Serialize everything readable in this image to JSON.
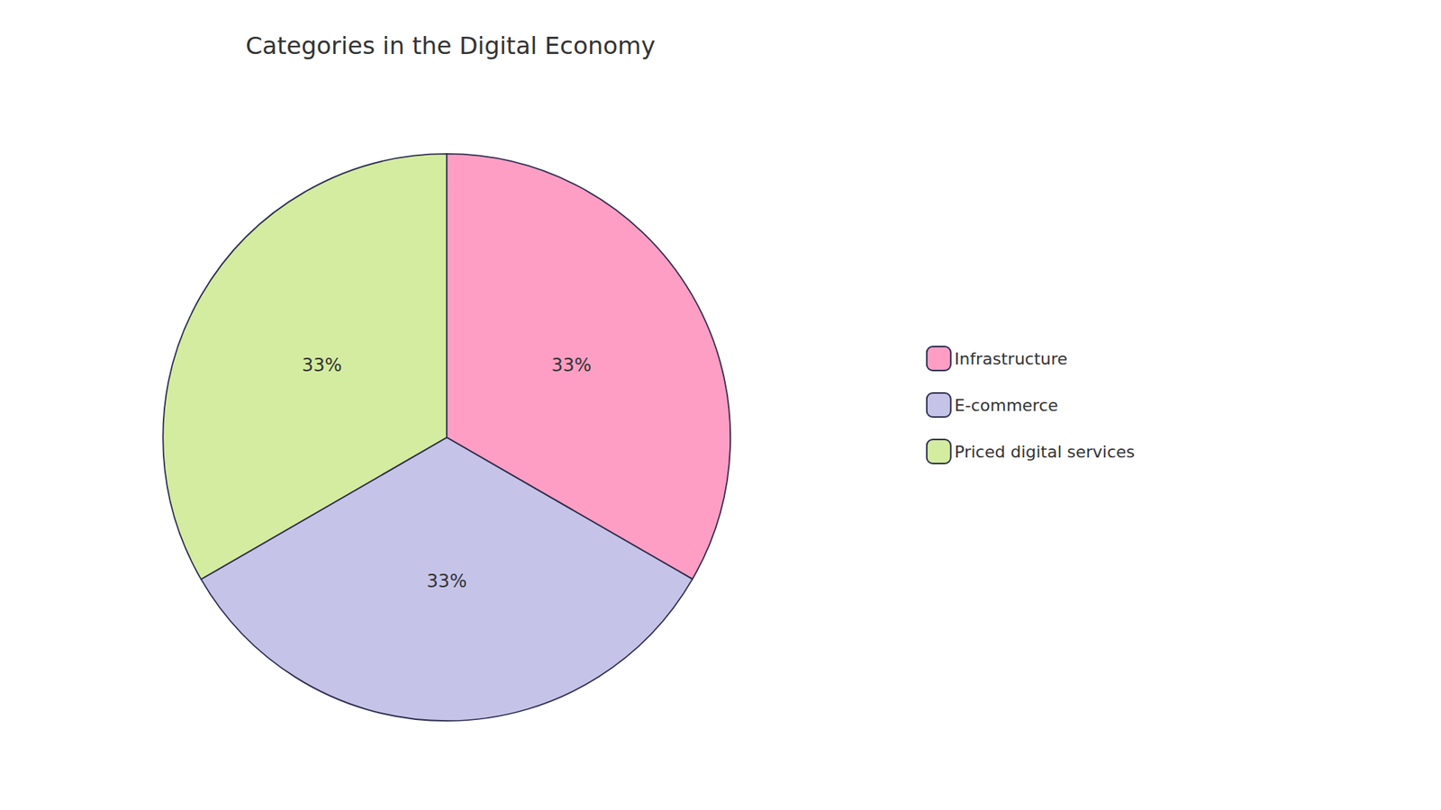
{
  "chart_data": {
    "type": "pie",
    "title": "Categories in the Digital Economy",
    "categories": [
      "Infrastructure",
      "E-commerce",
      "Priced digital services"
    ],
    "values": [
      33.33,
      33.33,
      33.34
    ],
    "value_labels": [
      "33%",
      "33%",
      "33%"
    ],
    "data_labels": true,
    "colors": [
      "#FF9EC4",
      "#C5C4E8",
      "#D4ECA0"
    ],
    "legend": "right"
  }
}
